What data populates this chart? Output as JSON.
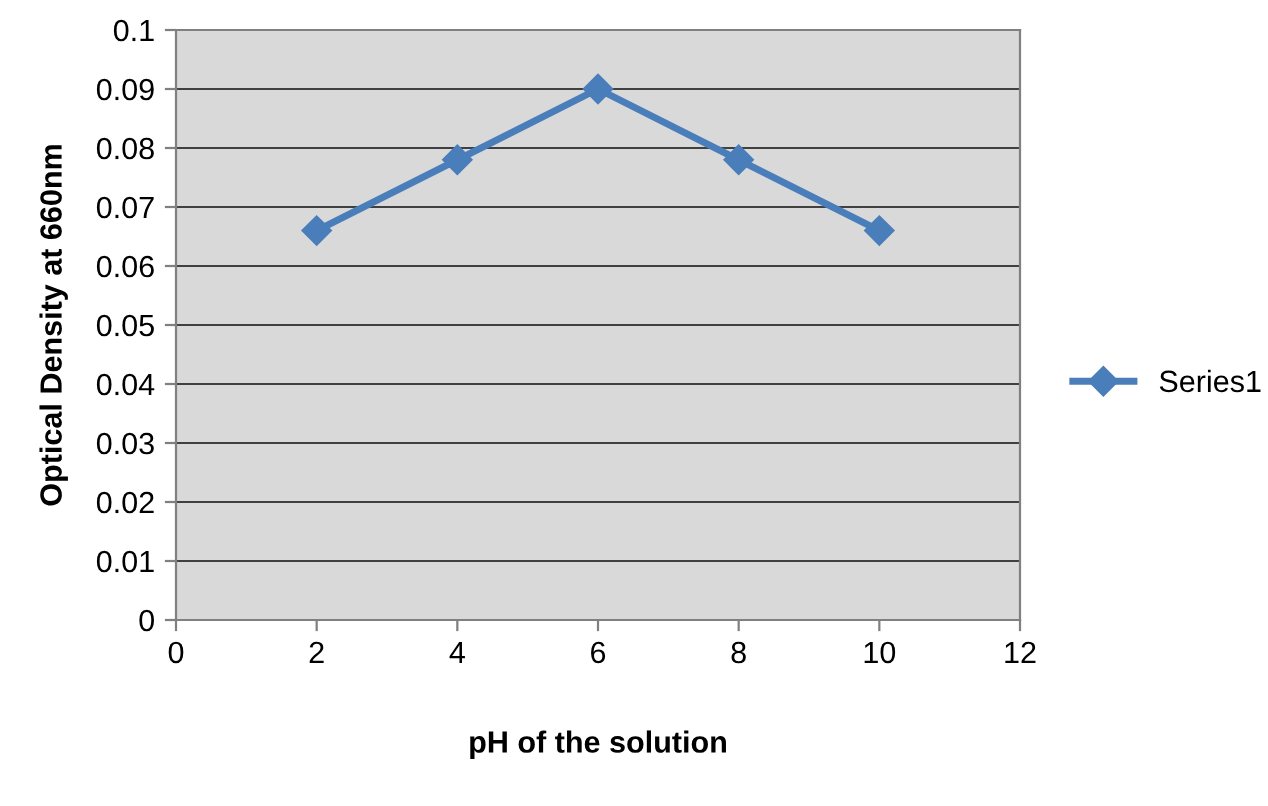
{
  "chart_data": {
    "type": "line",
    "xlabel": "pH of the solution",
    "ylabel": "Optical Density at 660nm",
    "x": [
      2,
      4,
      6,
      8,
      10
    ],
    "series": [
      {
        "name": "Series1",
        "color": "#4a7ebb",
        "values": [
          0.066,
          0.078,
          0.09,
          0.078,
          0.066
        ]
      }
    ],
    "xlim": [
      0,
      12
    ],
    "xticks": [
      0,
      2,
      4,
      6,
      8,
      10,
      12
    ],
    "ylim": [
      0,
      0.1
    ],
    "yticks": [
      0,
      0.01,
      0.02,
      0.03,
      0.04,
      0.05,
      0.06,
      0.07,
      0.08,
      0.09,
      0.1
    ],
    "grid": "y",
    "legend": "right",
    "marker": "diamond",
    "line_style": "solid"
  }
}
